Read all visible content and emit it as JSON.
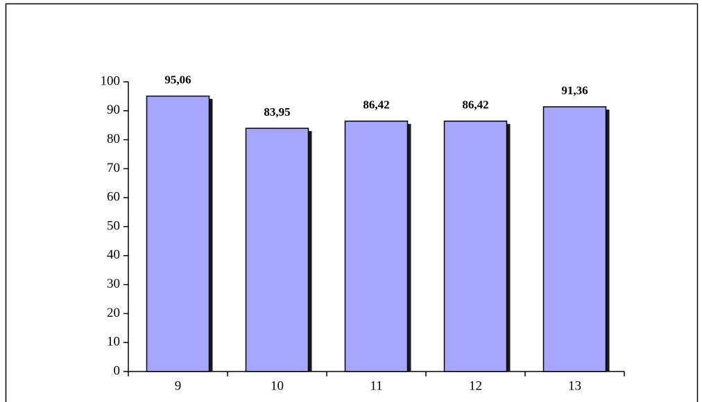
{
  "chart_data": {
    "type": "bar",
    "categories": [
      "9",
      "10",
      "11",
      "12",
      "13"
    ],
    "values": [
      95.06,
      83.95,
      86.42,
      86.42,
      91.36
    ],
    "value_labels": [
      "95,06",
      "83,95",
      "86,42",
      "86,42",
      "91,36"
    ],
    "color": "#a6a6ff",
    "ylim": [
      0,
      100
    ],
    "yticks": [
      0,
      10,
      20,
      30,
      40,
      50,
      60,
      70,
      80,
      90,
      100
    ]
  }
}
